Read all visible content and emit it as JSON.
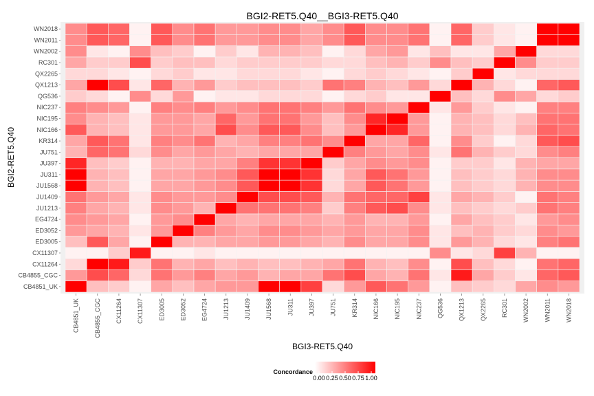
{
  "chart_data": {
    "type": "heatmap",
    "title": "BGI2-RET5.Q40__BGI3-RET5.Q40",
    "xlabel": "BGI3-RET5.Q40",
    "ylabel": "BGI2-RET5.Q40",
    "x_categories": [
      "CB4851_UK",
      "CB4855_CGC",
      "CX11264",
      "CX11307",
      "ED3005",
      "ED3052",
      "EG4724",
      "JU1213",
      "JU1409",
      "JU1568",
      "JU311",
      "JU397",
      "JU751",
      "KR314",
      "NIC166",
      "NIC195",
      "NIC237",
      "QG536",
      "QX1213",
      "QX2265",
      "RC301",
      "WN2002",
      "WN2011",
      "WN2018"
    ],
    "y_categories": [
      "CB4851_UK",
      "CB4855_CGC",
      "CX11264",
      "CX11307",
      "ED3005",
      "ED3052",
      "EG4724",
      "JU1213",
      "JU1409",
      "JU1568",
      "JU311",
      "JU397",
      "JU751",
      "KR314",
      "NIC166",
      "NIC195",
      "NIC237",
      "QG536",
      "QX1213",
      "QX2265",
      "RC301",
      "WN2002",
      "WN2011",
      "WN2018"
    ],
    "value_range": [
      0,
      1
    ],
    "color_low": "#ffffff",
    "color_high": "#ff0000",
    "legend": {
      "title": "Concordance",
      "labels": [
        "0.00",
        "0.25",
        "0.50",
        "0.75",
        "1.00"
      ],
      "position": "bottom"
    },
    "values": [
      [
        1.0,
        0.25,
        0.2,
        0.05,
        0.35,
        0.25,
        0.35,
        0.4,
        0.4,
        1.0,
        1.0,
        0.75,
        0.15,
        0.4,
        0.65,
        0.55,
        0.4,
        0.05,
        0.25,
        0.2,
        0.15,
        0.35,
        0.45,
        0.4
      ],
      [
        0.4,
        0.7,
        0.6,
        0.15,
        0.55,
        0.4,
        0.5,
        0.35,
        0.4,
        0.3,
        0.35,
        0.35,
        0.55,
        0.7,
        0.35,
        0.3,
        0.55,
        0.1,
        0.9,
        0.35,
        0.2,
        0.1,
        0.6,
        0.65
      ],
      [
        0.15,
        1.0,
        0.9,
        0.2,
        0.55,
        0.3,
        0.35,
        0.25,
        0.3,
        0.25,
        0.25,
        0.3,
        0.35,
        0.55,
        0.3,
        0.25,
        0.45,
        0.05,
        0.7,
        0.25,
        0.15,
        0.05,
        0.55,
        0.6
      ],
      [
        0.05,
        0.05,
        0.2,
        0.9,
        0.05,
        0.05,
        0.1,
        0.05,
        0.05,
        0.05,
        0.05,
        0.05,
        0.05,
        0.05,
        0.05,
        0.05,
        0.05,
        0.45,
        0.1,
        0.15,
        0.75,
        0.3,
        0.05,
        0.05
      ],
      [
        0.25,
        0.65,
        0.35,
        0.05,
        1.0,
        0.3,
        0.3,
        0.35,
        0.35,
        0.4,
        0.4,
        0.35,
        0.3,
        0.45,
        0.35,
        0.35,
        0.45,
        0.1,
        0.4,
        0.3,
        0.15,
        0.1,
        0.5,
        0.55
      ],
      [
        0.4,
        0.35,
        0.3,
        0.1,
        0.4,
        1.0,
        0.5,
        0.4,
        0.35,
        0.45,
        0.45,
        0.4,
        0.35,
        0.4,
        0.35,
        0.35,
        0.45,
        0.1,
        0.25,
        0.3,
        0.2,
        0.15,
        0.45,
        0.4
      ],
      [
        0.45,
        0.4,
        0.35,
        0.05,
        0.4,
        0.45,
        1.0,
        0.35,
        0.3,
        0.35,
        0.35,
        0.35,
        0.3,
        0.4,
        0.3,
        0.3,
        0.4,
        0.05,
        0.35,
        0.25,
        0.2,
        0.1,
        0.4,
        0.45
      ],
      [
        0.5,
        0.35,
        0.3,
        0.1,
        0.45,
        0.4,
        0.3,
        1.0,
        0.55,
        0.55,
        0.55,
        0.5,
        0.2,
        0.5,
        0.65,
        0.7,
        0.45,
        0.1,
        0.25,
        0.2,
        0.15,
        0.2,
        0.55,
        0.5
      ],
      [
        0.55,
        0.4,
        0.35,
        0.1,
        0.45,
        0.4,
        0.4,
        0.45,
        1.0,
        0.7,
        0.7,
        0.65,
        0.3,
        0.55,
        0.6,
        0.6,
        0.75,
        0.1,
        0.35,
        0.3,
        0.2,
        0.05,
        0.55,
        0.5
      ],
      [
        1.0,
        0.3,
        0.25,
        0.05,
        0.35,
        0.35,
        0.4,
        0.45,
        0.65,
        1.0,
        1.0,
        0.8,
        0.15,
        0.35,
        0.65,
        0.55,
        0.4,
        0.05,
        0.25,
        0.2,
        0.15,
        0.3,
        0.45,
        0.45
      ],
      [
        1.0,
        0.3,
        0.25,
        0.05,
        0.35,
        0.35,
        0.4,
        0.45,
        0.65,
        1.0,
        1.0,
        0.8,
        0.15,
        0.35,
        0.65,
        0.55,
        0.4,
        0.05,
        0.25,
        0.2,
        0.15,
        0.3,
        0.45,
        0.45
      ],
      [
        0.85,
        0.25,
        0.2,
        0.05,
        0.3,
        0.3,
        0.35,
        0.35,
        0.5,
        0.8,
        0.8,
        1.0,
        0.2,
        0.35,
        0.45,
        0.4,
        0.45,
        0.05,
        0.2,
        0.2,
        0.1,
        0.3,
        0.35,
        0.35
      ],
      [
        0.3,
        0.6,
        0.55,
        0.15,
        0.45,
        0.35,
        0.4,
        0.35,
        0.3,
        0.35,
        0.35,
        0.35,
        1.0,
        0.5,
        0.4,
        0.35,
        0.45,
        0.1,
        0.55,
        0.3,
        0.2,
        0.15,
        0.45,
        0.5
      ],
      [
        0.35,
        0.65,
        0.55,
        0.1,
        0.5,
        0.45,
        0.55,
        0.3,
        0.35,
        0.5,
        0.5,
        0.55,
        0.45,
        1.0,
        0.35,
        0.35,
        0.6,
        0.05,
        0.45,
        0.2,
        0.05,
        0.15,
        0.65,
        0.7
      ],
      [
        0.65,
        0.3,
        0.25,
        0.1,
        0.4,
        0.4,
        0.35,
        0.7,
        0.45,
        0.65,
        0.65,
        0.45,
        0.25,
        0.4,
        1.0,
        0.85,
        0.4,
        0.05,
        0.3,
        0.25,
        0.15,
        0.3,
        0.6,
        0.55
      ],
      [
        0.45,
        0.3,
        0.25,
        0.1,
        0.4,
        0.4,
        0.35,
        0.6,
        0.4,
        0.55,
        0.55,
        0.4,
        0.25,
        0.45,
        0.85,
        1.0,
        0.4,
        0.05,
        0.3,
        0.25,
        0.15,
        0.25,
        0.55,
        0.55
      ],
      [
        0.5,
        0.45,
        0.4,
        0.05,
        0.5,
        0.45,
        0.5,
        0.4,
        0.45,
        0.55,
        0.55,
        0.5,
        0.4,
        0.55,
        0.45,
        0.4,
        1.0,
        0.1,
        0.4,
        0.2,
        0.1,
        0.05,
        0.5,
        0.5
      ],
      [
        0.2,
        0.15,
        0.05,
        0.45,
        0.15,
        0.4,
        0.05,
        0.1,
        0.1,
        0.15,
        0.15,
        0.15,
        0.05,
        0.15,
        0.2,
        0.1,
        0.1,
        1.0,
        0.25,
        0.15,
        0.45,
        0.35,
        0.15,
        0.2
      ],
      [
        0.35,
        1.0,
        0.7,
        0.1,
        0.6,
        0.3,
        0.4,
        0.2,
        0.25,
        0.25,
        0.25,
        0.2,
        0.55,
        0.5,
        0.3,
        0.25,
        0.4,
        0.15,
        1.0,
        0.3,
        0.15,
        0.05,
        0.6,
        0.65
      ],
      [
        0.15,
        0.15,
        0.1,
        0.05,
        0.15,
        0.2,
        0.1,
        0.1,
        0.15,
        0.15,
        0.15,
        0.1,
        0.05,
        0.15,
        0.2,
        0.15,
        0.1,
        0.05,
        0.2,
        1.0,
        0.1,
        0.15,
        0.15,
        0.15
      ],
      [
        0.35,
        0.2,
        0.2,
        0.7,
        0.2,
        0.25,
        0.25,
        0.15,
        0.2,
        0.2,
        0.2,
        0.2,
        0.15,
        0.15,
        0.25,
        0.3,
        0.2,
        0.45,
        0.25,
        0.2,
        1.0,
        0.45,
        0.2,
        0.2
      ],
      [
        0.45,
        0.1,
        0.05,
        0.45,
        0.25,
        0.2,
        0.05,
        0.2,
        0.1,
        0.3,
        0.3,
        0.25,
        0.05,
        0.15,
        0.35,
        0.4,
        0.1,
        0.25,
        0.1,
        0.1,
        0.35,
        1.0,
        0.15,
        0.15
      ],
      [
        0.45,
        0.65,
        0.6,
        0.05,
        0.65,
        0.45,
        0.55,
        0.4,
        0.4,
        0.45,
        0.45,
        0.35,
        0.45,
        0.65,
        0.45,
        0.45,
        0.55,
        0.05,
        0.6,
        0.2,
        0.1,
        0.05,
        1.0,
        1.0
      ],
      [
        0.45,
        0.65,
        0.6,
        0.05,
        0.65,
        0.45,
        0.55,
        0.4,
        0.4,
        0.45,
        0.45,
        0.35,
        0.45,
        0.65,
        0.45,
        0.45,
        0.55,
        0.05,
        0.6,
        0.2,
        0.1,
        0.05,
        1.0,
        1.0
      ]
    ]
  }
}
